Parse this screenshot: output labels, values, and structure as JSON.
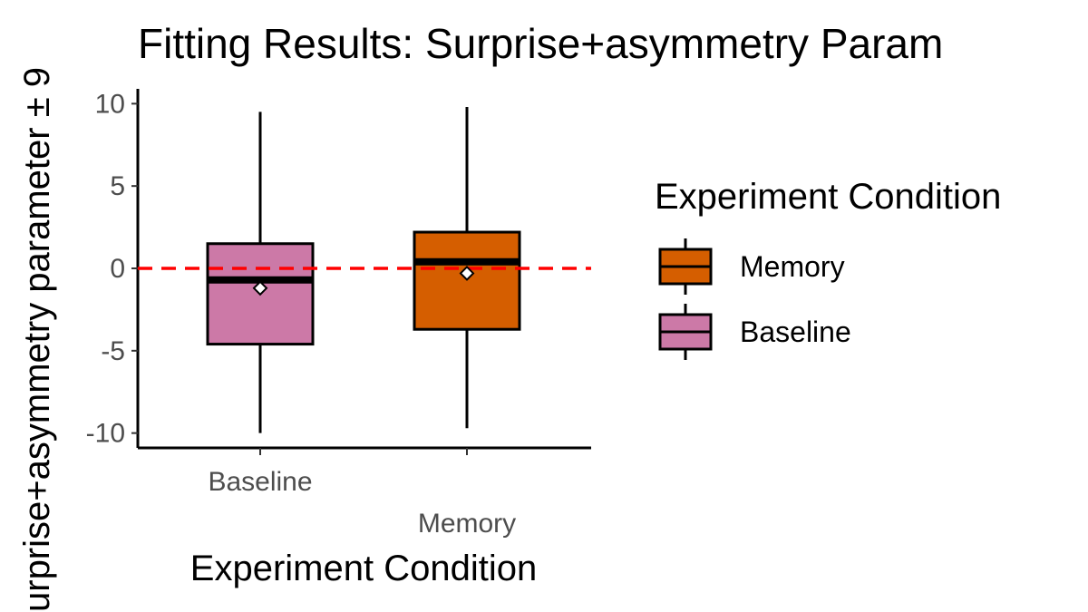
{
  "chart_data": {
    "type": "box",
    "title": "Fitting Results: Surprise+asymmetry Param",
    "xlabel": "Experiment Condition",
    "ylabel": "urprise+asymmetry parameter ± 9",
    "ylim": [
      -10.9,
      10.9
    ],
    "yticks": [
      10,
      5,
      0,
      -5,
      -10
    ],
    "reference_line": {
      "y": 0,
      "color": "#ff0000",
      "style": "dashed"
    },
    "categories": [
      "Baseline",
      "Memory"
    ],
    "boxes": [
      {
        "category": "Baseline",
        "whisker_low": -10,
        "q1": -4.6,
        "median": -0.7,
        "q3": 1.5,
        "whisker_high": 9.5,
        "mean": -1.2,
        "color": "#CC79A7"
      },
      {
        "category": "Memory",
        "whisker_low": -9.7,
        "q1": -3.7,
        "median": 0.4,
        "q3": 2.2,
        "whisker_high": 9.8,
        "mean": -0.3,
        "color": "#D55E00"
      }
    ],
    "legend": {
      "title": "Experiment Condition",
      "position": "right",
      "entries": [
        {
          "label": "Memory",
          "color": "#D55E00"
        },
        {
          "label": "Baseline",
          "color": "#CC79A7"
        }
      ]
    },
    "grid": false
  }
}
